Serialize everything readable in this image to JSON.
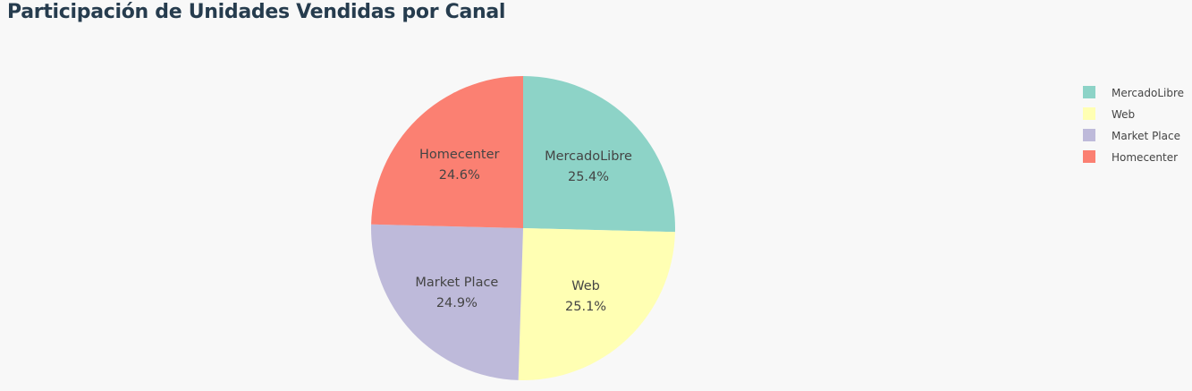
{
  "title": "Participación de Unidades Vendidas por Canal",
  "chart_data": {
    "type": "pie",
    "title": "Participación de Unidades Vendidas por Canal",
    "categories": [
      "MercadoLibre",
      "Web",
      "Market Place",
      "Homecenter"
    ],
    "values": [
      25.4,
      25.1,
      24.9,
      24.6
    ],
    "labels": [
      "25.4%",
      "25.1%",
      "24.9%",
      "24.6%"
    ],
    "colors": [
      "#8dd3c7",
      "#ffffb3",
      "#bebada",
      "#fb8072"
    ],
    "legend": {
      "placement": "top-right",
      "entries": [
        "MercadoLibre",
        "Web",
        "Market Place",
        "Homecenter"
      ]
    }
  }
}
